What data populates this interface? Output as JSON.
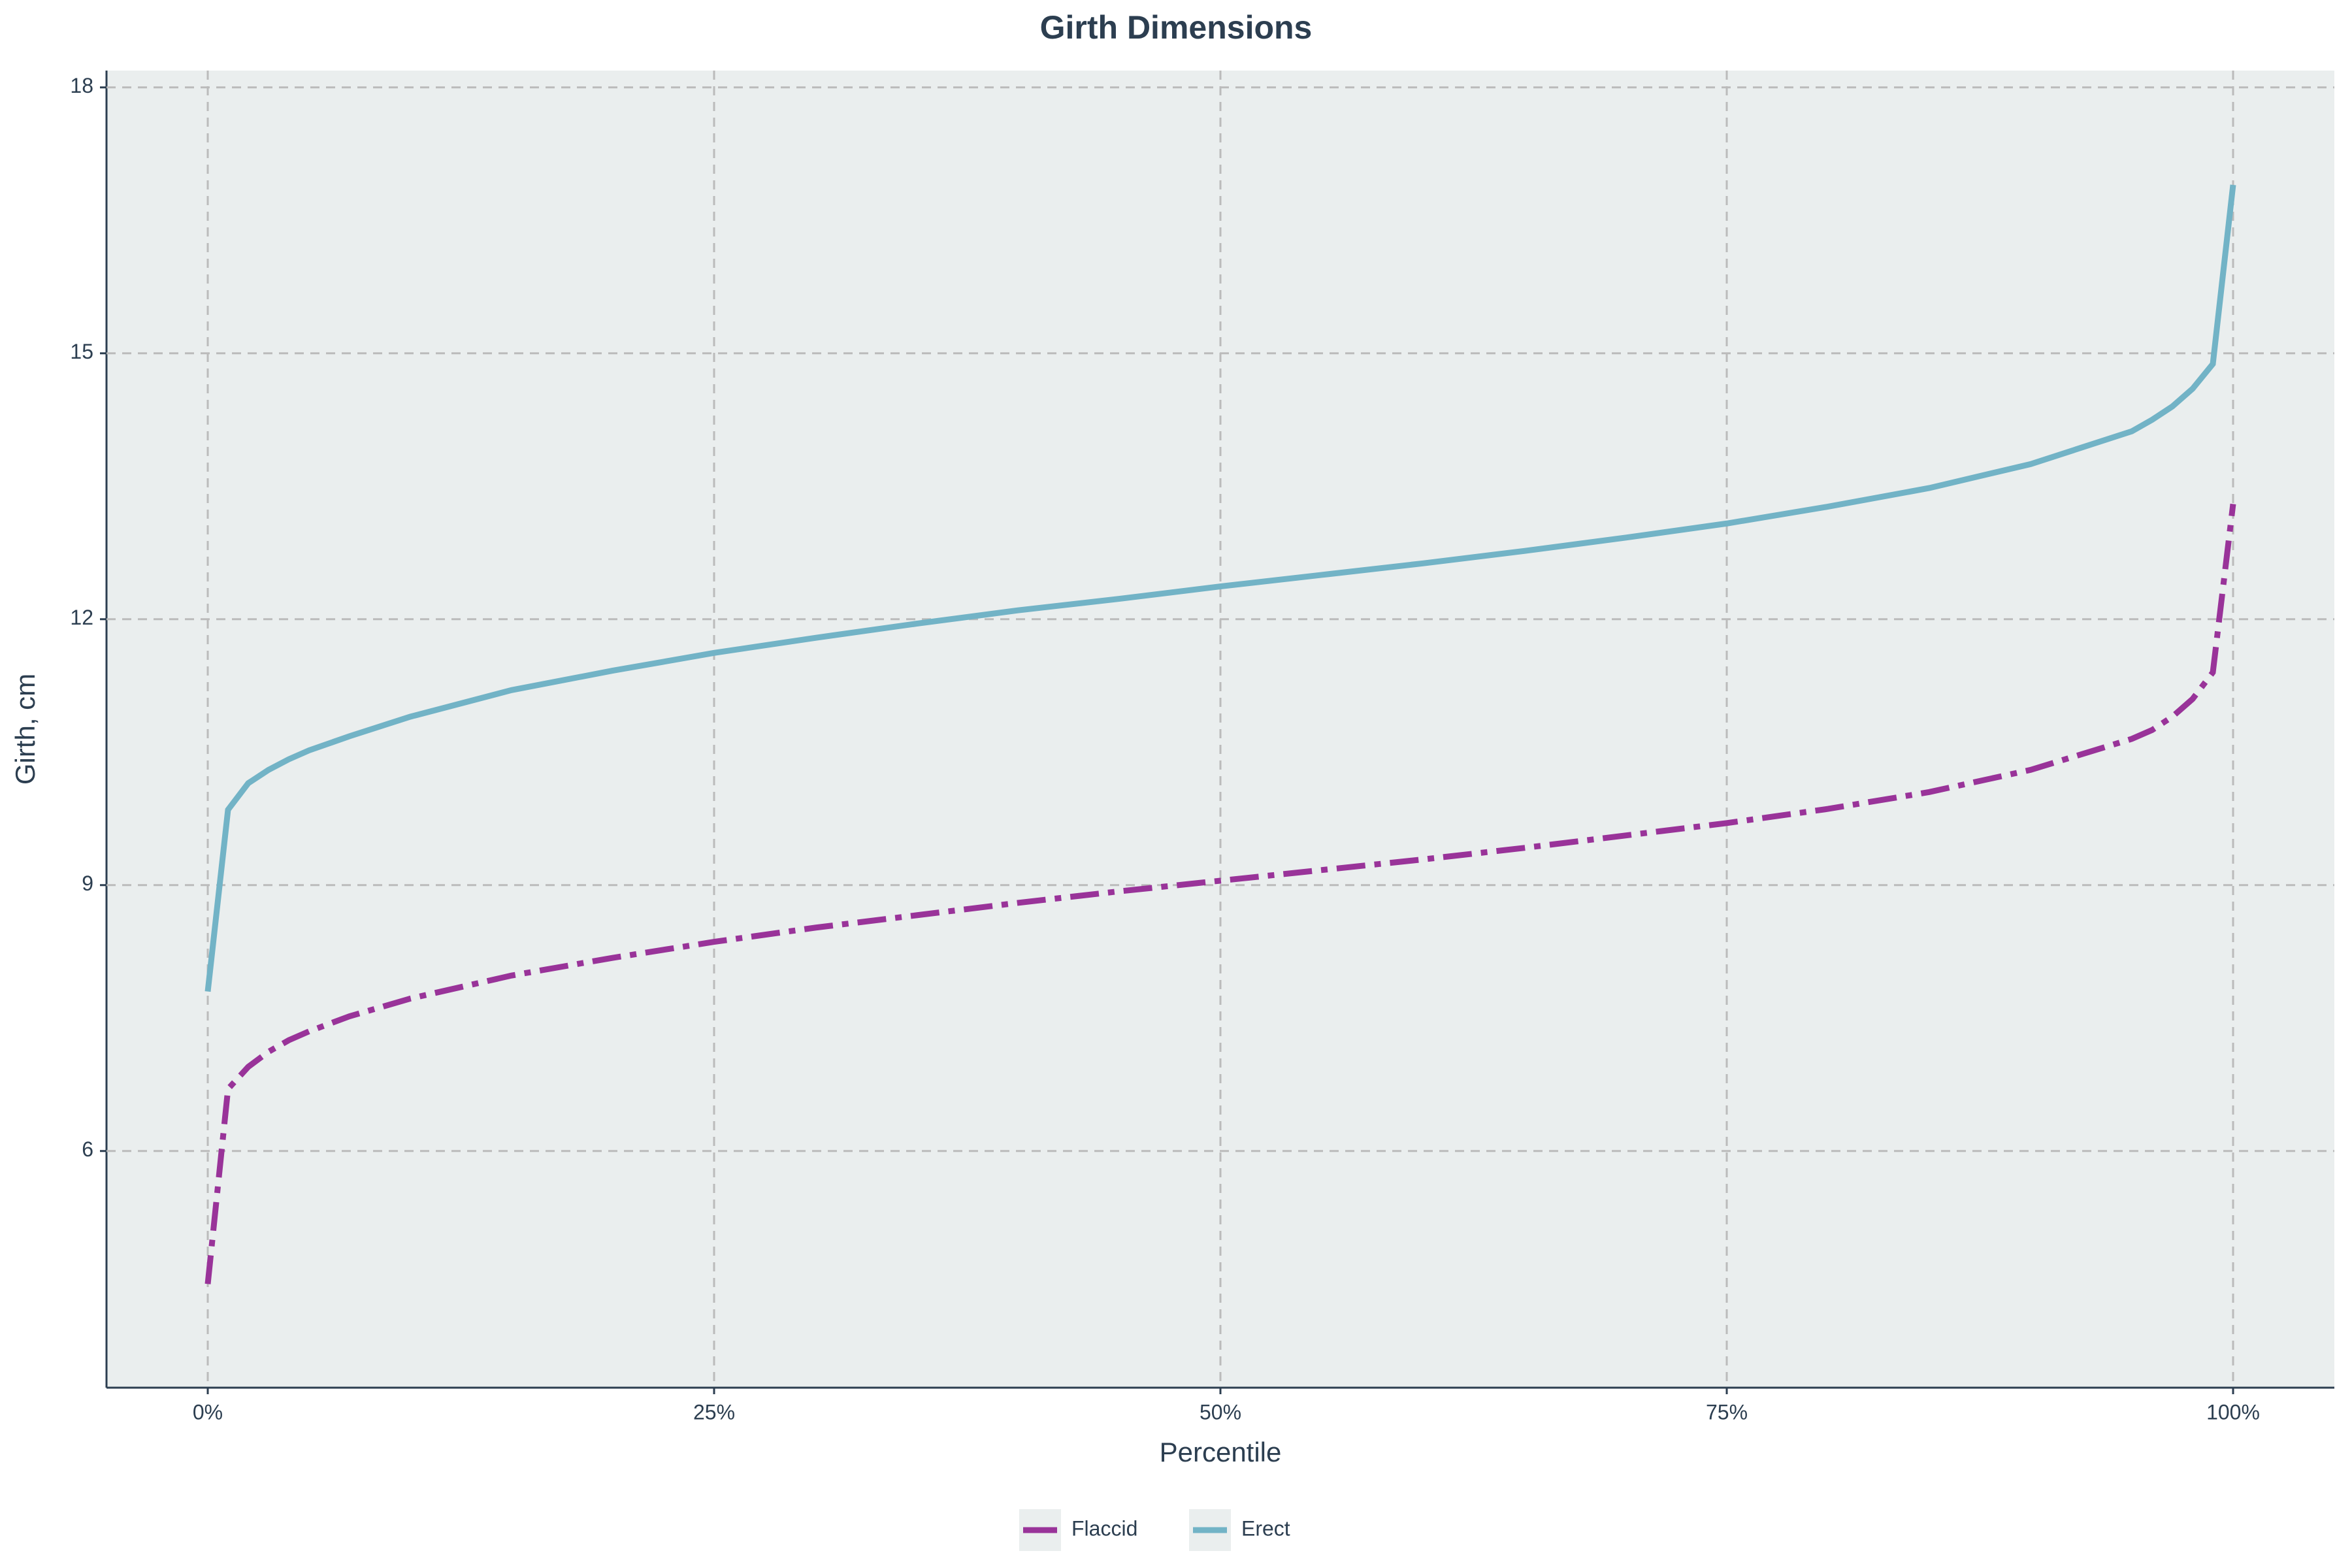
{
  "chart_data": {
    "type": "line",
    "title": "Girth Dimensions",
    "x_label": "Percentile",
    "y_label": "Girth, cm",
    "x": [
      0,
      1,
      2,
      3,
      4,
      5,
      7,
      10,
      15,
      20,
      25,
      30,
      35,
      40,
      45,
      50,
      55,
      60,
      65,
      70,
      75,
      80,
      85,
      90,
      95,
      96,
      97,
      98,
      99,
      100
    ],
    "series": [
      {
        "name": "Flaccid",
        "color": "#993399",
        "dash": "dashdot",
        "values": [
          4.5,
          6.7,
          6.95,
          7.12,
          7.25,
          7.35,
          7.52,
          7.72,
          7.98,
          8.18,
          8.36,
          8.52,
          8.66,
          8.8,
          8.93,
          9.05,
          9.17,
          9.29,
          9.42,
          9.56,
          9.7,
          9.86,
          10.05,
          10.3,
          10.65,
          10.75,
          10.9,
          11.1,
          11.4,
          13.3
        ]
      },
      {
        "name": "Erect",
        "color": "#72b3c6",
        "dash": "solid",
        "values": [
          7.8,
          9.85,
          10.15,
          10.3,
          10.42,
          10.52,
          10.68,
          10.9,
          11.2,
          11.42,
          11.62,
          11.79,
          11.95,
          12.1,
          12.23,
          12.37,
          12.5,
          12.63,
          12.77,
          12.92,
          13.08,
          13.27,
          13.48,
          13.75,
          14.12,
          14.25,
          14.4,
          14.6,
          14.88,
          16.9
        ]
      }
    ],
    "xlim": [
      -5,
      105
    ],
    "ylim": [
      3.33,
      18.19
    ],
    "xticks": [
      {
        "value": 0,
        "label": "0%"
      },
      {
        "value": 25,
        "label": "25%"
      },
      {
        "value": 50,
        "label": "50%"
      },
      {
        "value": 75,
        "label": "75%"
      },
      {
        "value": 100,
        "label": "100%"
      }
    ],
    "yticks": [
      6,
      9,
      12,
      15,
      18
    ],
    "grid": true,
    "legend": "bottom"
  }
}
